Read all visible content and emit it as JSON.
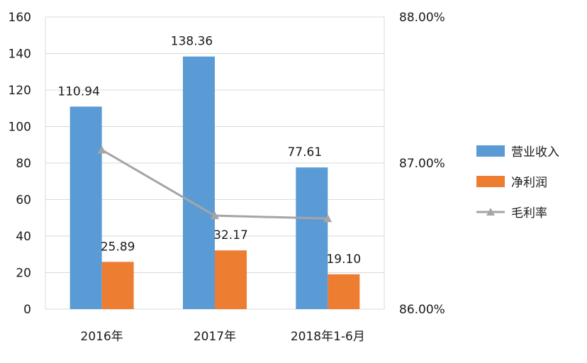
{
  "chart_data": {
    "type": "bar",
    "categories": [
      "2016年",
      "2017年",
      "2018年1-6月"
    ],
    "series": [
      {
        "name": "营业收入",
        "type": "bar",
        "axis": "left",
        "color": "#5B9BD5",
        "values": [
          110.94,
          138.36,
          77.61
        ],
        "labels": [
          "110.94",
          "138.36",
          "77.61"
        ]
      },
      {
        "name": "净利润",
        "type": "bar",
        "axis": "left",
        "color": "#ED7D31",
        "values": [
          25.89,
          32.17,
          19.1
        ],
        "labels": [
          "25.89",
          "32.17",
          "19.10"
        ]
      },
      {
        "name": "毛利率",
        "type": "line",
        "axis": "right",
        "color": "#A5A5A5",
        "values": [
          0.8709,
          0.8664,
          0.8662
        ]
      }
    ],
    "y_left": {
      "min": 0,
      "max": 160,
      "step": 20,
      "ticks": [
        "0",
        "20",
        "40",
        "60",
        "80",
        "100",
        "120",
        "140",
        "160"
      ]
    },
    "y_right": {
      "min": 0.86,
      "max": 0.88,
      "ticks": [
        {
          "value": 0.86,
          "label": "86.00%"
        },
        {
          "value": 0.87,
          "label": "87.00%"
        },
        {
          "value": 0.88,
          "label": "88.00%"
        }
      ]
    },
    "grid": true,
    "legend": "right"
  }
}
